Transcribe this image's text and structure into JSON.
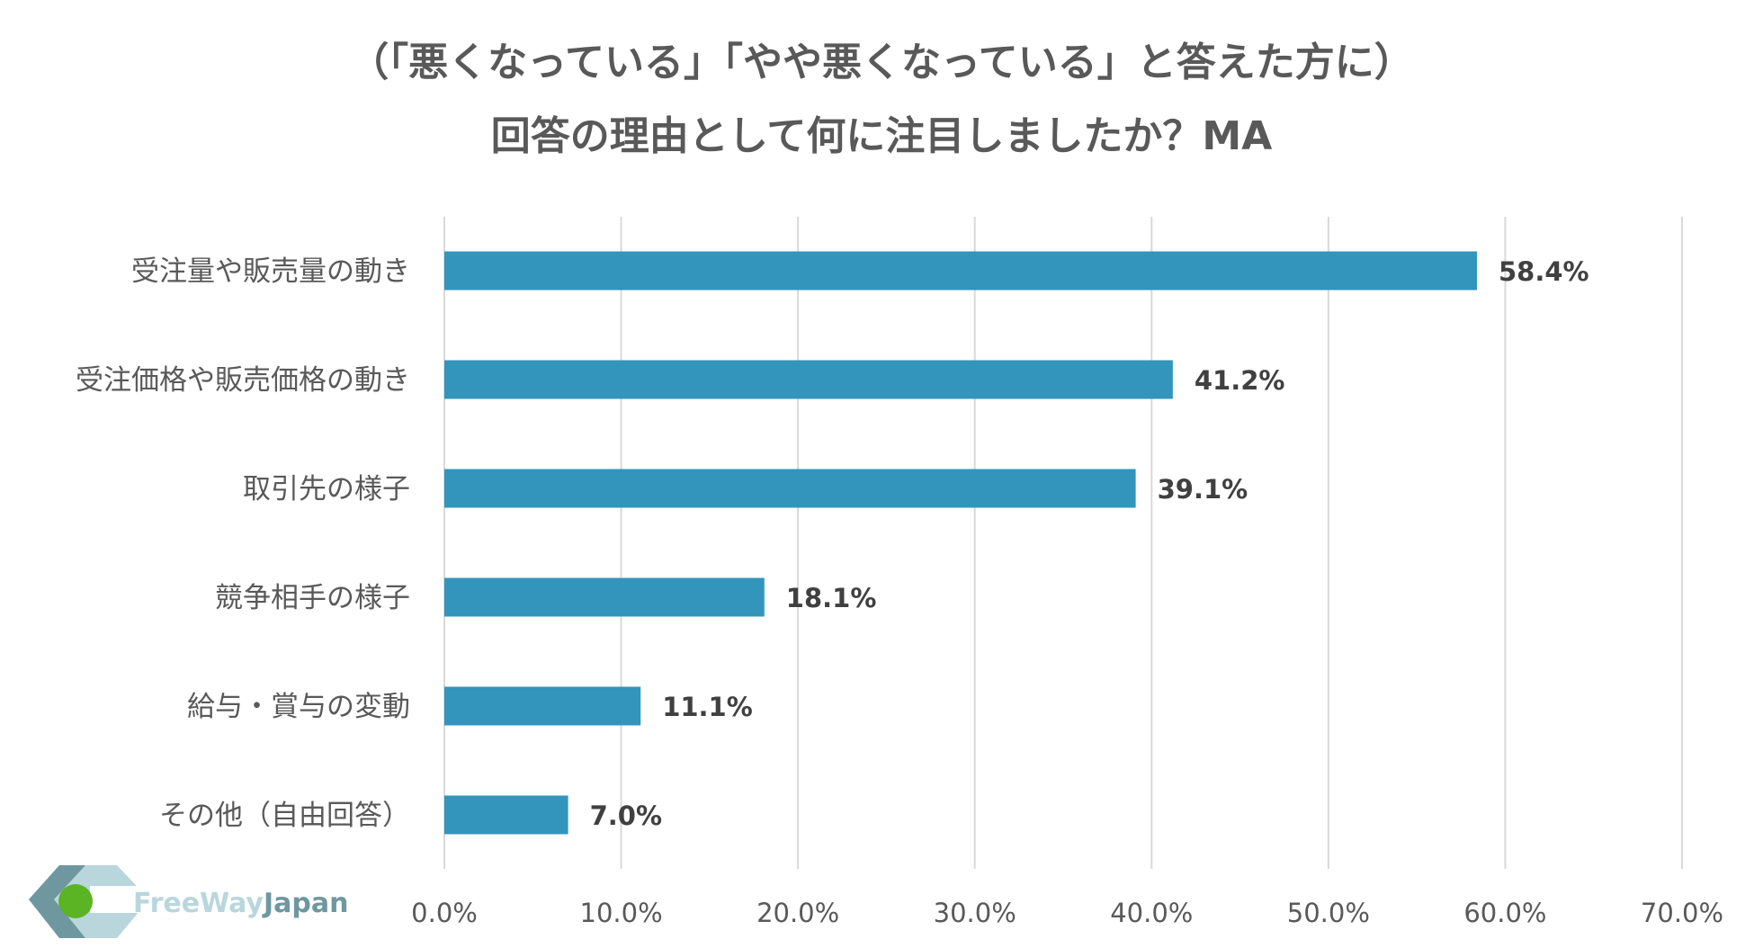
{
  "chart_data": {
    "type": "bar",
    "orientation": "horizontal",
    "title": [
      "（「悪くなっている」「やや悪くなっている」と答えた方に）",
      "回答の理由として何に注目しましたか？MA"
    ],
    "categories": [
      "受注量や販売量の動き",
      "受注価格や販売価格の動き",
      "取引先の様子",
      "競争相手の様子",
      "給与・賞与の変動",
      "その他（自由回答）"
    ],
    "values": [
      58.4,
      41.2,
      39.1,
      18.1,
      11.1,
      7.0
    ],
    "value_labels": [
      "58.4%",
      "41.2%",
      "39.1%",
      "18.1%",
      "11.1%",
      "7.0%"
    ],
    "xlim": [
      0,
      70
    ],
    "xticks": [
      0,
      10,
      20,
      30,
      40,
      50,
      60,
      70
    ],
    "xtick_labels": [
      "0.0%",
      "10.0%",
      "20.0%",
      "30.0%",
      "40.0%",
      "50.0%",
      "60.0%",
      "70.0%"
    ],
    "grid": true,
    "bar_color": "#3394BC",
    "xlabel": "",
    "ylabel": ""
  },
  "logo": {
    "text_a": "FreeWay",
    "text_b": "Japan"
  }
}
